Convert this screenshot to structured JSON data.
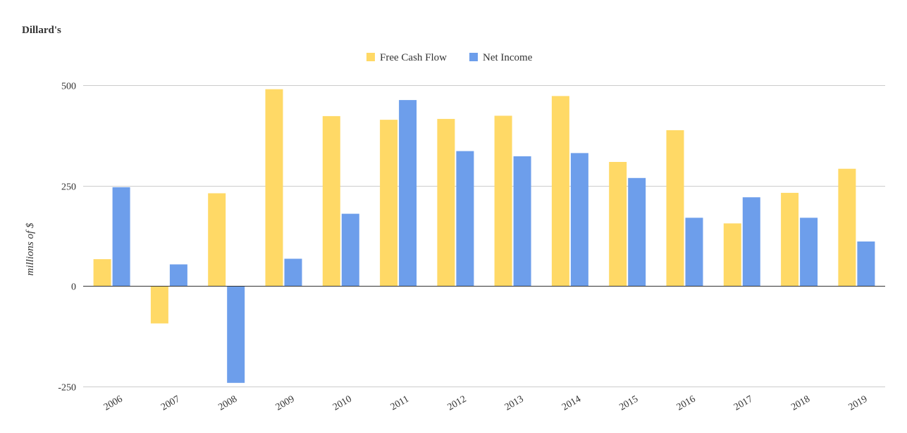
{
  "colors": {
    "free_cash_flow": "#ffd966",
    "net_income": "#6d9eeb",
    "grid": "#cccccc",
    "baseline": "#333333",
    "text": "#333333"
  },
  "chart_data": {
    "type": "bar",
    "title": "Dillard's",
    "xlabel": "",
    "ylabel": "millions of $",
    "ylim": [
      -250,
      500
    ],
    "yticks": [
      -250,
      0,
      250,
      500
    ],
    "grid": true,
    "legend_position": "top-center",
    "categories": [
      "2006",
      "2007",
      "2008",
      "2009",
      "2010",
      "2011",
      "2012",
      "2013",
      "2014",
      "2015",
      "2016",
      "2017",
      "2018",
      "2019"
    ],
    "series": [
      {
        "name": "Free Cash Flow",
        "color": "#ffd966",
        "values": [
          67,
          -93,
          231,
          490,
          423,
          414,
          416,
          424,
          473,
          309,
          388,
          156,
          232,
          292
        ]
      },
      {
        "name": "Net Income",
        "color": "#6d9eeb",
        "values": [
          246,
          54,
          -241,
          68,
          180,
          463,
          336,
          323,
          331,
          269,
          170,
          221,
          170,
          111
        ]
      }
    ]
  }
}
